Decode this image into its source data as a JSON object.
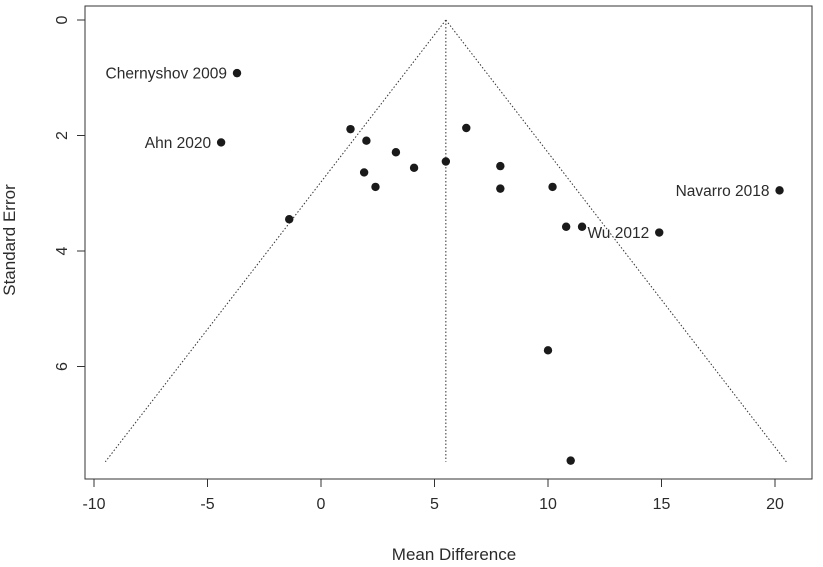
{
  "chart_data": {
    "type": "scatter",
    "title": "",
    "xlabel": "Mean Difference",
    "ylabel": "Standard Error",
    "xlim": [
      -10.5,
      21.5
    ],
    "ylim": [
      0,
      7.75
    ],
    "y_reversed": true,
    "grid": false,
    "xticks": [
      -10,
      -5,
      0,
      5,
      10,
      15,
      20
    ],
    "yticks": [
      0,
      2,
      4,
      6
    ],
    "xtick_labels": [
      "-10",
      "-5",
      "0",
      "5",
      "10",
      "15",
      "20"
    ],
    "ytick_labels": [
      "0",
      "2",
      "4",
      "6"
    ],
    "funnel": {
      "center": 5.5,
      "apex_se": 0,
      "base_se": 7.65,
      "left_base_x": -9.5,
      "right_base_x": 20.5
    },
    "points": [
      {
        "x": -3.7,
        "y": 0.92,
        "label": "Chernyshov 2009",
        "label_side": "left"
      },
      {
        "x": -4.4,
        "y": 2.12,
        "label": "Ahn  2020",
        "label_side": "left"
      },
      {
        "x": 20.2,
        "y": 2.95,
        "label": "Navarro 2018",
        "label_side": "left"
      },
      {
        "x": 14.9,
        "y": 3.68,
        "label": "Wu 2012",
        "label_side": "left"
      },
      {
        "x": 1.3,
        "y": 1.89
      },
      {
        "x": 2.0,
        "y": 2.09
      },
      {
        "x": 3.3,
        "y": 2.29
      },
      {
        "x": 1.9,
        "y": 2.64
      },
      {
        "x": 2.4,
        "y": 2.89
      },
      {
        "x": 4.1,
        "y": 2.56
      },
      {
        "x": 5.5,
        "y": 2.45
      },
      {
        "x": 6.4,
        "y": 1.87
      },
      {
        "x": 7.9,
        "y": 2.53
      },
      {
        "x": 7.9,
        "y": 2.92
      },
      {
        "x": 10.2,
        "y": 2.89
      },
      {
        "x": 10.8,
        "y": 3.58
      },
      {
        "x": 11.5,
        "y": 3.58
      },
      {
        "x": -1.4,
        "y": 3.45
      },
      {
        "x": 10.0,
        "y": 5.72
      },
      {
        "x": 11.0,
        "y": 7.63
      }
    ]
  }
}
